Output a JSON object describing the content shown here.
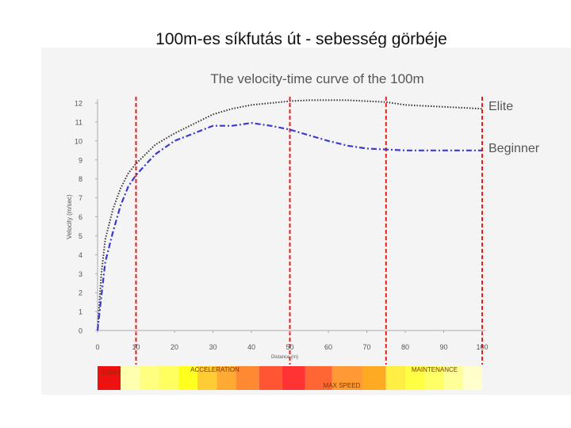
{
  "slide": {
    "title": "100m-es síkfutás út - sebesség görbéje"
  },
  "chart_data": {
    "type": "line",
    "title": "The velocity-time curve of the 100m",
    "xlabel": "Distance (m)",
    "ylabel": "Velocity (m/sec)",
    "xlim": [
      0,
      100
    ],
    "ylim": [
      0,
      12
    ],
    "x_ticks": [
      "0",
      "10",
      "20",
      "30",
      "40",
      "50",
      "60",
      "70",
      "80",
      "90",
      "100"
    ],
    "y_ticks": [
      "0",
      "1",
      "2",
      "3",
      "4",
      "5",
      "6",
      "7",
      "8",
      "9",
      "10",
      "11",
      "12"
    ],
    "grid": false,
    "legend": "right (labels at line ends)",
    "phase_markers_x": [
      10,
      50,
      75,
      100
    ],
    "series": [
      {
        "name": "Elite",
        "color": "#333333",
        "style": "dotted",
        "x": [
          0,
          1,
          2,
          4,
          6,
          8,
          10,
          15,
          20,
          25,
          30,
          35,
          40,
          45,
          50,
          55,
          60,
          65,
          70,
          75,
          80,
          85,
          90,
          95,
          100
        ],
        "y": [
          0,
          3.0,
          4.8,
          6.4,
          7.5,
          8.3,
          8.8,
          9.8,
          10.4,
          10.9,
          11.4,
          11.7,
          11.9,
          12.0,
          12.1,
          12.15,
          12.15,
          12.15,
          12.1,
          12.05,
          11.9,
          11.85,
          11.8,
          11.75,
          11.7
        ]
      },
      {
        "name": "Beginner",
        "color": "#3a3ad0",
        "style": "dash-dot",
        "x": [
          0,
          1,
          2,
          4,
          6,
          8,
          10,
          15,
          20,
          25,
          30,
          35,
          40,
          45,
          50,
          55,
          60,
          65,
          70,
          75,
          80,
          85,
          90,
          95,
          100
        ],
        "y": [
          0,
          1.8,
          3.6,
          5.2,
          6.6,
          7.6,
          8.2,
          9.3,
          10.0,
          10.4,
          10.8,
          10.8,
          10.95,
          10.8,
          10.6,
          10.3,
          10.0,
          9.75,
          9.6,
          9.55,
          9.5,
          9.5,
          9.5,
          9.5,
          9.5
        ]
      }
    ],
    "phase_bar": {
      "labels": [
        {
          "text": "START"
        },
        {
          "text": "ACCELERATION"
        },
        {
          "text": "MAX SPEED"
        },
        {
          "text": "MAINTENANCE"
        }
      ],
      "cells": [
        {
          "x0": 0,
          "x1": 6,
          "color": "#ee1111"
        },
        {
          "x0": 6,
          "x1": 11,
          "color": "#ffffb0"
        },
        {
          "x0": 11,
          "x1": 16,
          "color": "#ffff80"
        },
        {
          "x0": 16,
          "x1": 21,
          "color": "#ffff60"
        },
        {
          "x0": 21,
          "x1": 26,
          "color": "#ffff20"
        },
        {
          "x0": 26,
          "x1": 31,
          "color": "#ffcc33"
        },
        {
          "x0": 31,
          "x1": 36,
          "color": "#ffaa33"
        },
        {
          "x0": 36,
          "x1": 42,
          "color": "#ff8833"
        },
        {
          "x0": 42,
          "x1": 48,
          "color": "#ff5533"
        },
        {
          "x0": 48,
          "x1": 54,
          "color": "#ff3333"
        },
        {
          "x0": 54,
          "x1": 61,
          "color": "#ff6633"
        },
        {
          "x0": 61,
          "x1": 69,
          "color": "#ff9933"
        },
        {
          "x0": 69,
          "x1": 75,
          "color": "#ffaa22"
        },
        {
          "x0": 75,
          "x1": 80,
          "color": "#ffee44"
        },
        {
          "x0": 80,
          "x1": 85,
          "color": "#ffff44"
        },
        {
          "x0": 85,
          "x1": 90,
          "color": "#ffff66"
        },
        {
          "x0": 90,
          "x1": 95,
          "color": "#ffff99"
        },
        {
          "x0": 95,
          "x1": 100,
          "color": "#ffffcc"
        }
      ]
    }
  }
}
